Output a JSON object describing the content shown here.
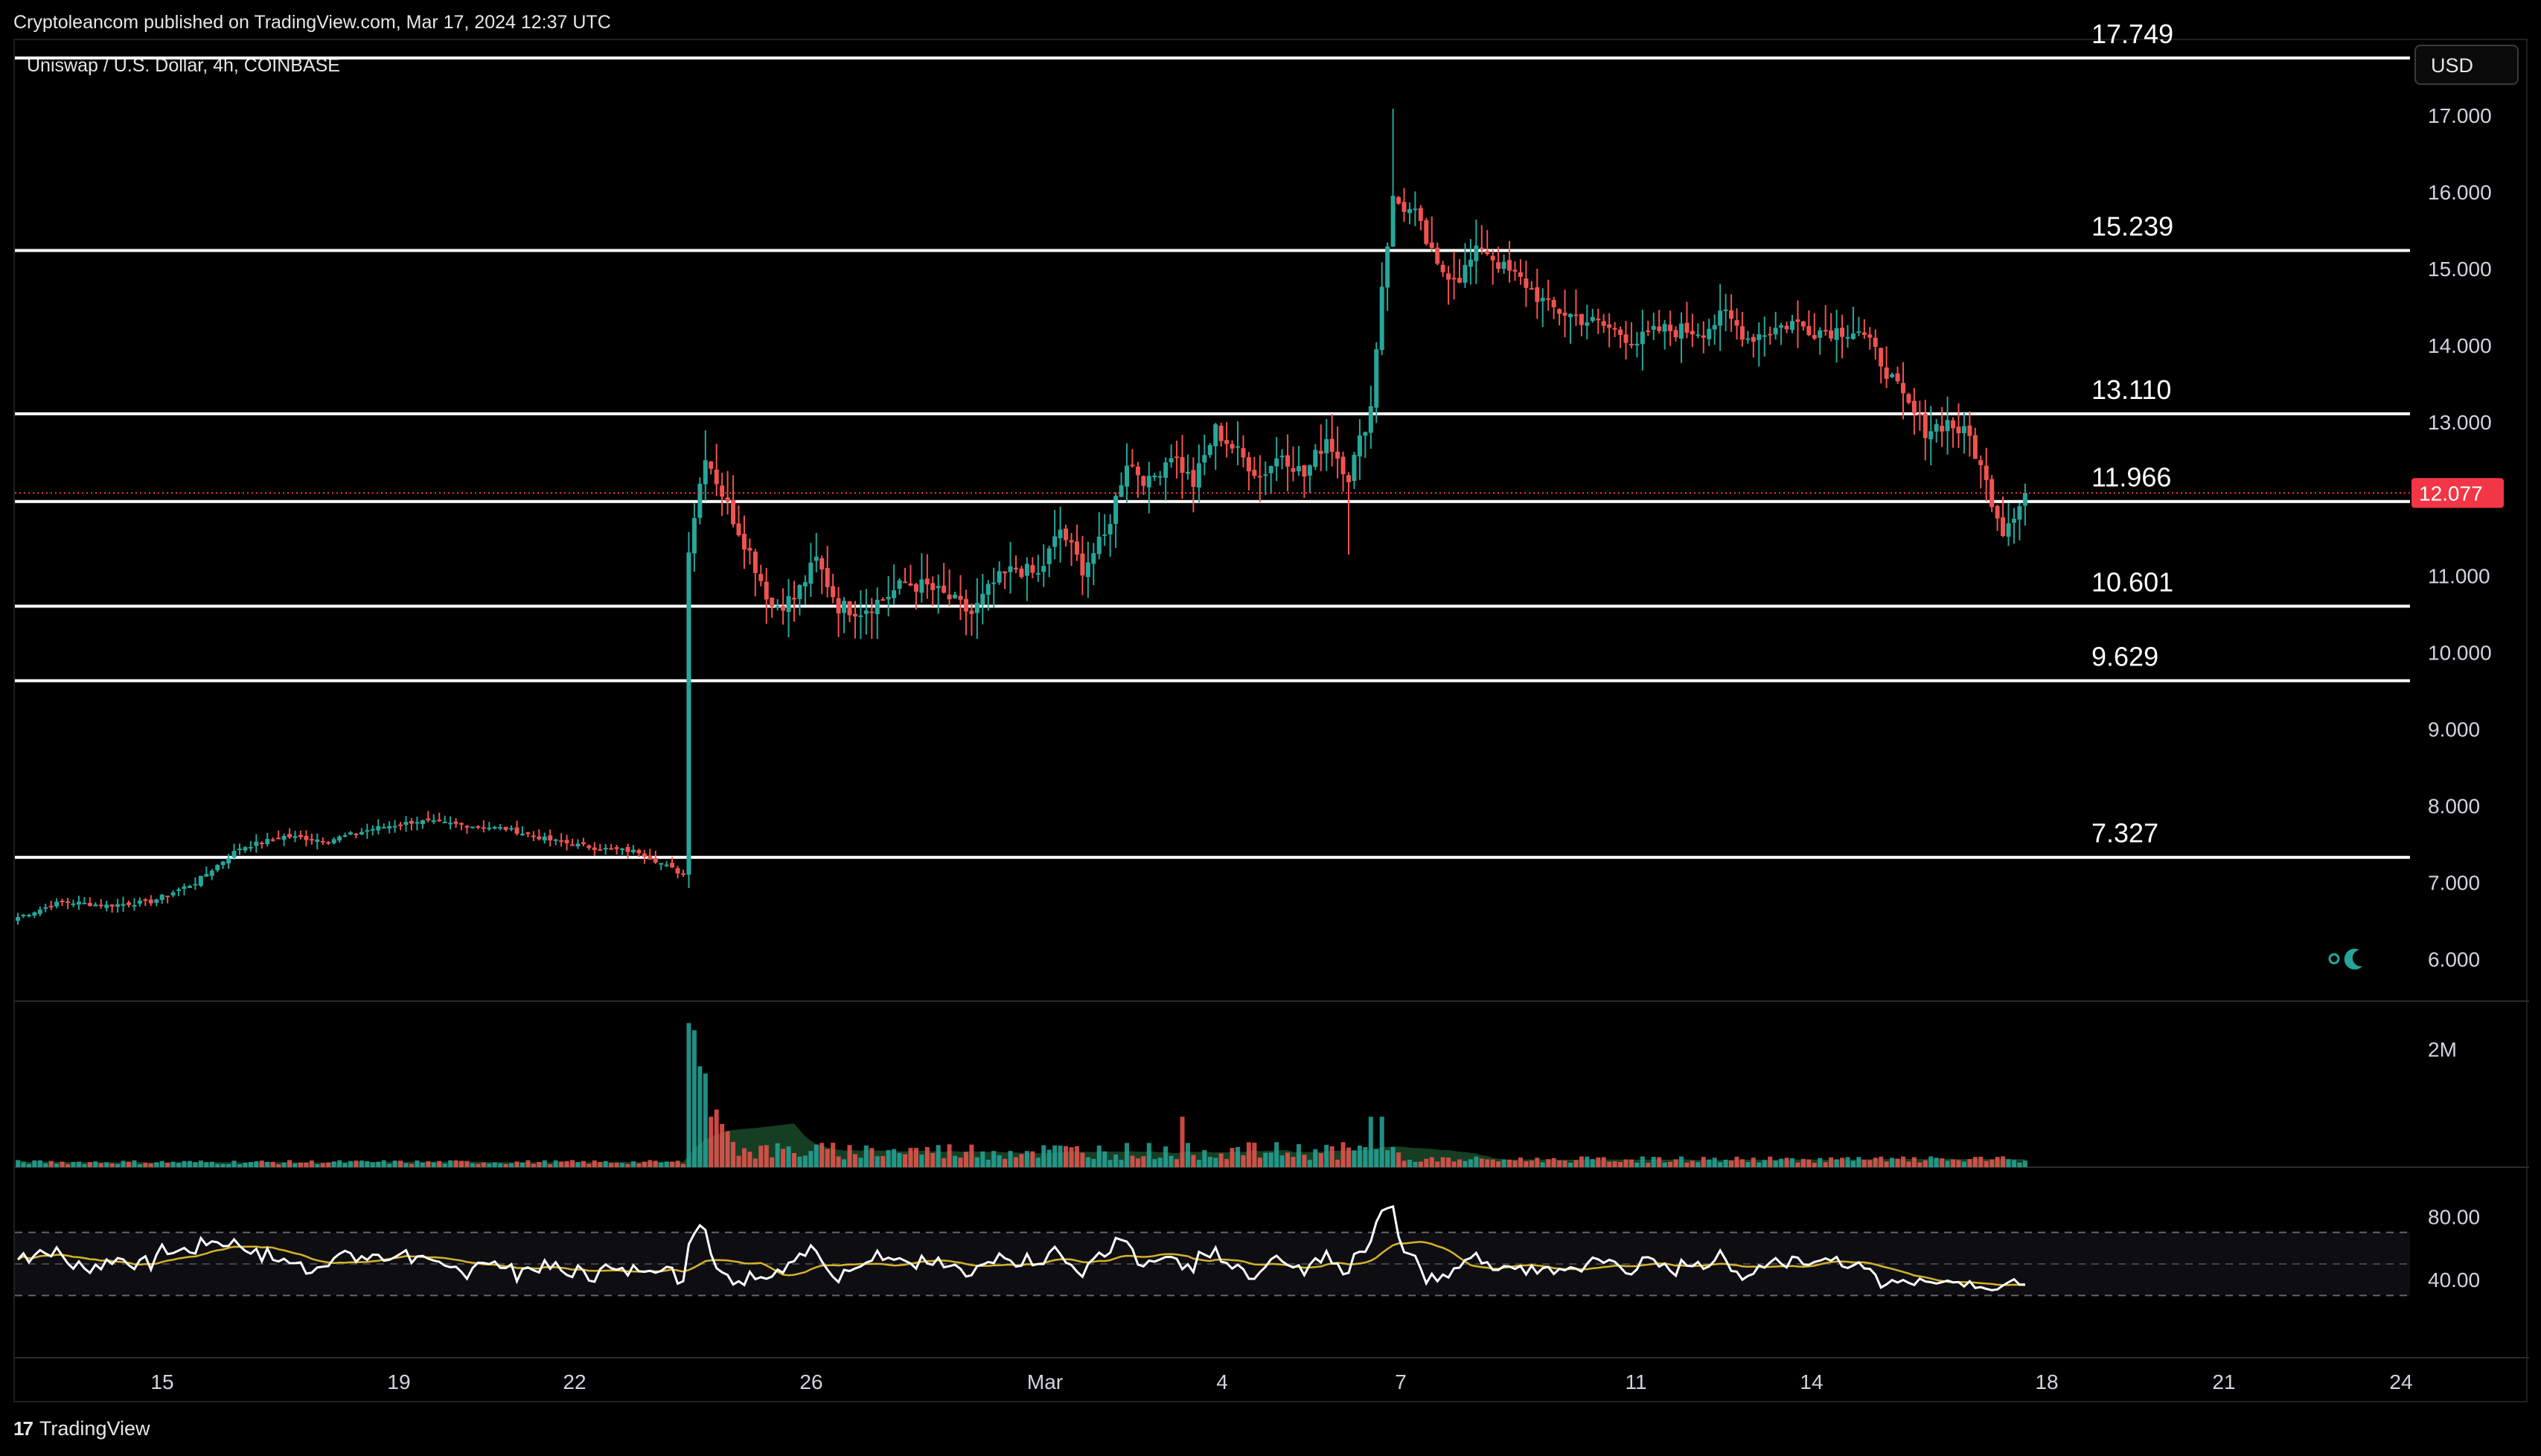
{
  "header": {
    "published_text": "Cryptoleancom published on TradingView.com, Mar 17, 2024 12:37 UTC",
    "symbol_text": "Uniswap / U.S. Dollar, 4h, COINBASE"
  },
  "toolbar": {
    "currency_label": "USD"
  },
  "footer": {
    "brand_label": "TradingView"
  },
  "theme": {
    "background": "#000000",
    "up_color": "#26a69a",
    "down_color": "#ef5350",
    "level_line_color": "#ffffff",
    "price_tag_color": "#f23645",
    "rsi_color": "#ffffff",
    "rsi_ma_color": "#d4b12b",
    "volume_ma_fill": "#1b4d2c"
  },
  "chart_data": {
    "type": "candlestick",
    "title": "Uniswap / U.S. Dollar, 4h, COINBASE",
    "currency": "USD",
    "price_axis": {
      "min": 5.5,
      "max": 18.0,
      "ticks": [
        "17.000",
        "16.000",
        "15.000",
        "14.000",
        "13.000",
        "12.000",
        "11.000",
        "10.000",
        "9.000",
        "8.000",
        "7.000",
        "6.000"
      ]
    },
    "time_axis_labels": [
      "15",
      "19",
      "22",
      "26",
      "Mar",
      "4",
      "7",
      "11",
      "14",
      "18",
      "21",
      "24"
    ],
    "current_price": "12.077",
    "horizontal_levels": [
      {
        "label": "17.749",
        "value": 17.749
      },
      {
        "label": "15.239",
        "value": 15.239
      },
      {
        "label": "13.110",
        "value": 13.11
      },
      {
        "label": "11.966",
        "value": 11.966
      },
      {
        "label": "10.601",
        "value": 10.601
      },
      {
        "label": "9.629",
        "value": 9.629
      },
      {
        "label": "7.327",
        "value": 7.327
      }
    ],
    "close_path": [
      [
        0,
        6.55
      ],
      [
        8,
        6.75
      ],
      [
        16,
        6.7
      ],
      [
        24,
        6.75
      ],
      [
        32,
        7.0
      ],
      [
        40,
        7.45
      ],
      [
        48,
        7.6
      ],
      [
        56,
        7.55
      ],
      [
        64,
        7.7
      ],
      [
        72,
        7.8
      ],
      [
        80,
        7.75
      ],
      [
        88,
        7.7
      ],
      [
        96,
        7.55
      ],
      [
        104,
        7.45
      ],
      [
        112,
        7.4
      ],
      [
        120,
        7.1
      ],
      [
        121,
        11.4
      ],
      [
        124,
        12.6
      ],
      [
        128,
        11.9
      ],
      [
        132,
        11.3
      ],
      [
        136,
        10.6
      ],
      [
        140,
        10.7
      ],
      [
        144,
        11.2
      ],
      [
        148,
        10.6
      ],
      [
        152,
        10.55
      ],
      [
        156,
        10.7
      ],
      [
        160,
        10.9
      ],
      [
        164,
        10.85
      ],
      [
        168,
        10.7
      ],
      [
        172,
        10.5
      ],
      [
        176,
        10.9
      ],
      [
        180,
        11.1
      ],
      [
        184,
        11.0
      ],
      [
        188,
        11.6
      ],
      [
        192,
        11.1
      ],
      [
        196,
        11.5
      ],
      [
        200,
        12.5
      ],
      [
        204,
        12.2
      ],
      [
        208,
        12.6
      ],
      [
        212,
        12.2
      ],
      [
        216,
        12.9
      ],
      [
        220,
        12.6
      ],
      [
        224,
        12.3
      ],
      [
        228,
        12.6
      ],
      [
        232,
        12.3
      ],
      [
        236,
        12.8
      ],
      [
        240,
        12.3
      ],
      [
        244,
        13.2
      ],
      [
        246,
        14.8
      ],
      [
        248,
        15.9
      ],
      [
        252,
        15.7
      ],
      [
        256,
        15.0
      ],
      [
        260,
        14.9
      ],
      [
        264,
        15.3
      ],
      [
        268,
        15.0
      ],
      [
        272,
        14.8
      ],
      [
        276,
        14.5
      ],
      [
        280,
        14.4
      ],
      [
        284,
        14.3
      ],
      [
        288,
        14.2
      ],
      [
        292,
        14.05
      ],
      [
        296,
        14.2
      ],
      [
        300,
        14.2
      ],
      [
        304,
        14.2
      ],
      [
        308,
        14.4
      ],
      [
        312,
        14.1
      ],
      [
        316,
        14.2
      ],
      [
        320,
        14.3
      ],
      [
        324,
        14.2
      ],
      [
        328,
        14.2
      ],
      [
        332,
        14.2
      ],
      [
        336,
        13.8
      ],
      [
        340,
        13.3
      ],
      [
        344,
        12.9
      ],
      [
        348,
        13.0
      ],
      [
        352,
        12.8
      ],
      [
        356,
        12.0
      ],
      [
        358,
        11.6
      ],
      [
        362,
        12.08
      ]
    ],
    "volume": {
      "max_label": "2M",
      "max_value": 2000000,
      "spike_index": 121
    },
    "rsi": {
      "levels": [
        "80.00",
        "40.00"
      ],
      "upper": 70,
      "lower": 30,
      "range": [
        0,
        100
      ]
    }
  }
}
